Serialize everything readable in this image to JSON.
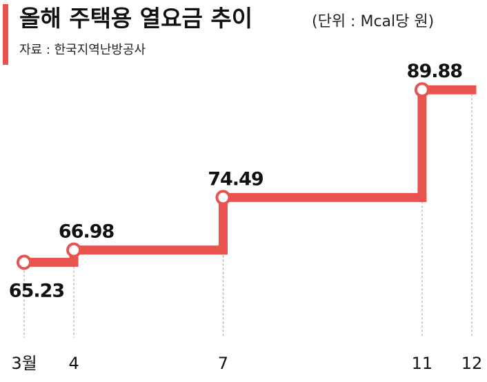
{
  "chart_data": {
    "type": "step",
    "title": "올해 주택용 열요금 추이",
    "subtitle": "(단위 : Mcal당 원)",
    "source": "자료 : 한국지역난방공사",
    "x": [
      3,
      4,
      7,
      11
    ],
    "values": [
      65.23,
      66.98,
      74.49,
      89.88
    ],
    "label_position": [
      "below",
      "above",
      "above",
      "above"
    ],
    "color": "#e8524f",
    "accent_color": "#e8524f",
    "xlim": [
      3,
      12
    ],
    "xticks": [
      {
        "value": 3,
        "label": "3월"
      },
      4,
      7,
      11,
      12
    ],
    "ylim": [
      56.5,
      90
    ]
  }
}
